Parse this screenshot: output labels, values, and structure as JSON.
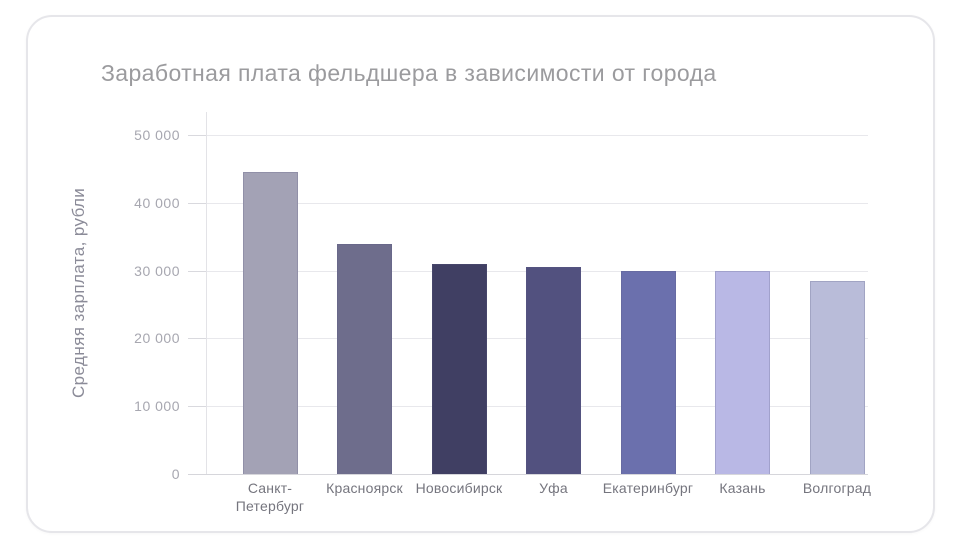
{
  "card": {
    "title": "Заработная плата фельдшера в зависимости от города"
  },
  "chart_data": {
    "type": "bar",
    "title": "Заработная плата фельдшера в зависимости от города",
    "xlabel": "",
    "ylabel": "Средняя зарплата, рубли",
    "categories": [
      "Санкт-Петербург",
      "Красноярск",
      "Новосибирск",
      "Уфа",
      "Екатеринбург",
      "Казань",
      "Волгоград"
    ],
    "values": [
      44500,
      33900,
      31000,
      30500,
      30000,
      30000,
      28500
    ],
    "bar_colors": [
      "#a3a2b5",
      "#6e6d8c",
      "#403f63",
      "#52517f",
      "#6b70ad",
      "#b9b8e5",
      "#b9bcd9"
    ],
    "ylim": [
      0,
      50000
    ],
    "yticks": [
      0,
      10000,
      20000,
      30000,
      40000,
      50000
    ],
    "ytick_labels": [
      "0",
      "10 000",
      "20 000",
      "30 000",
      "40 000",
      "50 000"
    ],
    "grid": true,
    "legend": false
  },
  "colors": {
    "title_text": "#9b9b9e",
    "y_axis_title_text": "#8b8b98",
    "y_tick_text": "#a7a7b0",
    "x_tick_text": "#75757e",
    "gridline": "#e8e8ec",
    "axis_line": "#e3e3e7",
    "card_border": "#e6e6ea",
    "background": "#ffffff"
  }
}
